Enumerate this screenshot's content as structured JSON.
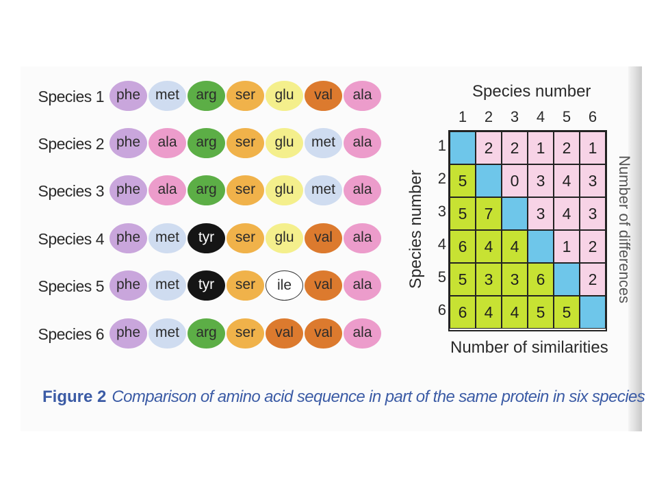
{
  "sequences": [
    {
      "label": "Species 1",
      "acids": [
        "phe",
        "met",
        "arg",
        "ser",
        "glu",
        "val",
        "ala"
      ]
    },
    {
      "label": "Species 2",
      "acids": [
        "phe",
        "ala",
        "arg",
        "ser",
        "glu",
        "met",
        "ala"
      ]
    },
    {
      "label": "Species 3",
      "acids": [
        "phe",
        "ala",
        "arg",
        "ser",
        "glu",
        "met",
        "ala"
      ]
    },
    {
      "label": "Species 4",
      "acids": [
        "phe",
        "met",
        "tyr",
        "ser",
        "glu",
        "val",
        "ala"
      ]
    },
    {
      "label": "Species 5",
      "acids": [
        "phe",
        "met",
        "tyr",
        "ser",
        "ile",
        "val",
        "ala"
      ]
    },
    {
      "label": "Species 6",
      "acids": [
        "phe",
        "met",
        "arg",
        "ser",
        "val",
        "val",
        "ala"
      ]
    }
  ],
  "acid_colors": {
    "phe": "#c9a6dc",
    "met": "#cfdcf0",
    "arg": "#5cae46",
    "ser": "#f0b24a",
    "glu": "#f4ef8c",
    "val": "#dc7a2e",
    "ala": "#ec9ccb",
    "tyr": "#151515",
    "ile": "#ffffff"
  },
  "matrix": {
    "title": "Species number",
    "y_label": "Species number",
    "x_label": "Number of similarities",
    "right_label": "Number of differences",
    "col_numbers": [
      "1",
      "2",
      "3",
      "4",
      "5",
      "6"
    ],
    "row_numbers": [
      "1",
      "2",
      "3",
      "4",
      "5",
      "6"
    ],
    "cells": [
      [
        "",
        "2",
        "2",
        "1",
        "2",
        "1"
      ],
      [
        "5",
        "",
        "0",
        "3",
        "4",
        "3"
      ],
      [
        "5",
        "7",
        "",
        "3",
        "4",
        "3"
      ],
      [
        "6",
        "4",
        "4",
        "",
        "1",
        "2"
      ],
      [
        "5",
        "3",
        "3",
        "6",
        "",
        "2"
      ],
      [
        "6",
        "4",
        "4",
        "5",
        "5",
        ""
      ]
    ],
    "colors": {
      "diagonal": "#6ec6ea",
      "similarities": "#c7e233",
      "differences": "#f7d3e6"
    }
  },
  "caption": {
    "figure": "Figure 2",
    "text": "Comparison of amino acid sequence in part of the same protein in six species"
  }
}
